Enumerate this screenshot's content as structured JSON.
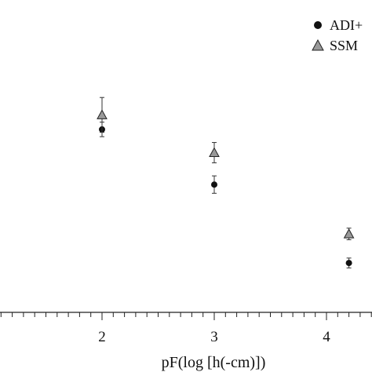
{
  "chart_data": {
    "type": "scatter",
    "title": "",
    "xlabel": "pF(log [h(-cm)])",
    "ylabel": "",
    "x_ticks": [
      2,
      3,
      4
    ],
    "x_tick_labels": [
      "2",
      "3",
      "4"
    ],
    "xlim": [
      1.1,
      4.4
    ],
    "ylim": [
      0,
      1
    ],
    "grid": false,
    "legend_position": "top-right",
    "series": [
      {
        "name": "ADI+",
        "marker": "circle",
        "color": "#111111",
        "points": [
          {
            "x": 2.0,
            "y": 0.63,
            "err": 0.025
          },
          {
            "x": 3.0,
            "y": 0.44,
            "err": 0.03
          },
          {
            "x": 4.2,
            "y": 0.17,
            "err": 0.017
          }
        ]
      },
      {
        "name": "SSM",
        "marker": "triangle",
        "color": "#999999",
        "points": [
          {
            "x": 2.0,
            "y": 0.68,
            "err": 0.06
          },
          {
            "x": 3.0,
            "y": 0.55,
            "err": 0.035
          },
          {
            "x": 4.2,
            "y": 0.27,
            "err": 0.02
          }
        ]
      }
    ]
  }
}
